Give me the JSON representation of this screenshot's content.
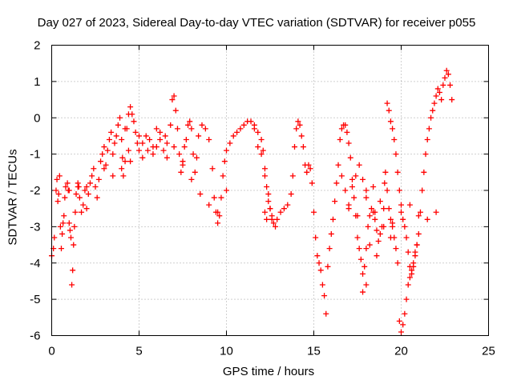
{
  "chart_data": {
    "type": "scatter",
    "title": "Day 027 of 2023, Sidereal Day-to-day VTEC variation (SDTVAR) for receiver p055",
    "xlabel": "GPS time / hours",
    "ylabel": "SDTVAR / TECUs",
    "xlim": [
      0,
      25
    ],
    "ylim": [
      -6,
      2
    ],
    "xticks": [
      0,
      5,
      10,
      15,
      20,
      25
    ],
    "yticks": [
      -6,
      -5,
      -4,
      -3,
      -2,
      -1,
      0,
      1,
      2
    ],
    "grid": true,
    "marker": "+",
    "color": "#ff0000",
    "series": [
      {
        "name": "SDTVAR",
        "points": [
          [
            0.0,
            -3.8
          ],
          [
            0.1,
            -3.6
          ],
          [
            0.15,
            -3.3
          ],
          [
            0.25,
            -2.0
          ],
          [
            0.3,
            -1.7
          ],
          [
            0.35,
            -2.3
          ],
          [
            0.4,
            -2.1
          ],
          [
            0.45,
            -1.6
          ],
          [
            0.5,
            -3.0
          ],
          [
            0.55,
            -3.6
          ],
          [
            0.6,
            -3.2
          ],
          [
            0.65,
            -2.9
          ],
          [
            0.7,
            -2.7
          ],
          [
            0.75,
            -2.2
          ],
          [
            0.8,
            -1.9
          ],
          [
            0.9,
            -1.8
          ],
          [
            0.95,
            -2.0
          ],
          [
            1.0,
            -2.9
          ],
          [
            1.05,
            -3.1
          ],
          [
            1.1,
            -3.3
          ],
          [
            1.15,
            -4.6
          ],
          [
            1.2,
            -4.2
          ],
          [
            1.25,
            -3.5
          ],
          [
            1.3,
            -3.0
          ],
          [
            1.35,
            -2.6
          ],
          [
            1.4,
            -2.1
          ],
          [
            1.5,
            -1.8
          ],
          [
            1.55,
            -1.9
          ],
          [
            1.6,
            -2.2
          ],
          [
            1.7,
            -2.6
          ],
          [
            1.8,
            -2.4
          ],
          [
            1.9,
            -2.0
          ],
          [
            2.0,
            -2.5
          ],
          [
            2.1,
            -2.1
          ],
          [
            2.2,
            -1.8
          ],
          [
            2.3,
            -1.6
          ],
          [
            2.4,
            -1.4
          ],
          [
            2.5,
            -1.9
          ],
          [
            2.6,
            -2.2
          ],
          [
            2.7,
            -1.7
          ],
          [
            2.8,
            -1.2
          ],
          [
            2.9,
            -1.0
          ],
          [
            3.0,
            -0.8
          ],
          [
            3.1,
            -1.3
          ],
          [
            3.2,
            -0.9
          ],
          [
            3.3,
            -0.6
          ],
          [
            3.4,
            -0.4
          ],
          [
            3.5,
            -1.0
          ],
          [
            3.6,
            -0.7
          ],
          [
            3.7,
            -0.5
          ],
          [
            3.8,
            -0.2
          ],
          [
            3.9,
            0.0
          ],
          [
            4.0,
            -0.6
          ],
          [
            4.05,
            -1.1
          ],
          [
            4.1,
            -1.6
          ],
          [
            4.2,
            -1.2
          ],
          [
            4.3,
            -0.3
          ],
          [
            4.4,
            0.1
          ],
          [
            4.5,
            0.3
          ],
          [
            4.6,
            0.1
          ],
          [
            4.7,
            -0.1
          ],
          [
            4.8,
            -0.4
          ],
          [
            4.9,
            -0.7
          ],
          [
            5.0,
            -0.9
          ],
          [
            5.2,
            -0.7
          ],
          [
            5.4,
            -0.5
          ],
          [
            5.6,
            -0.6
          ],
          [
            5.8,
            -0.8
          ],
          [
            6.0,
            -0.3
          ],
          [
            6.2,
            -0.6
          ],
          [
            6.4,
            -0.9
          ],
          [
            6.6,
            -1.1
          ],
          [
            6.8,
            -0.2
          ],
          [
            6.9,
            0.5
          ],
          [
            7.0,
            0.6
          ],
          [
            7.1,
            0.2
          ],
          [
            7.2,
            -0.3
          ],
          [
            7.3,
            -1.0
          ],
          [
            7.4,
            -1.5
          ],
          [
            7.5,
            -1.2
          ],
          [
            7.6,
            -0.8
          ],
          [
            7.7,
            -0.6
          ],
          [
            7.8,
            -0.2
          ],
          [
            7.9,
            -0.1
          ],
          [
            8.0,
            -0.3
          ],
          [
            8.1,
            -1.0
          ],
          [
            8.2,
            -1.5
          ],
          [
            8.3,
            -1.1
          ],
          [
            8.4,
            -0.5
          ],
          [
            8.6,
            -0.2
          ],
          [
            8.8,
            -0.3
          ],
          [
            9.0,
            -0.6
          ],
          [
            9.2,
            -1.4
          ],
          [
            9.3,
            -2.2
          ],
          [
            9.4,
            -2.6
          ],
          [
            9.5,
            -2.9
          ],
          [
            9.6,
            -2.7
          ],
          [
            9.7,
            -2.2
          ],
          [
            9.8,
            -1.6
          ],
          [
            9.9,
            -1.2
          ],
          [
            10.0,
            -0.9
          ],
          [
            10.2,
            -0.7
          ],
          [
            10.4,
            -0.5
          ],
          [
            10.6,
            -0.4
          ],
          [
            10.8,
            -0.3
          ],
          [
            11.0,
            -0.2
          ],
          [
            11.2,
            -0.1
          ],
          [
            11.4,
            -0.1
          ],
          [
            11.6,
            -0.2
          ],
          [
            11.8,
            -0.4
          ],
          [
            12.0,
            -0.6
          ],
          [
            12.1,
            -0.9
          ],
          [
            12.2,
            -1.4
          ],
          [
            12.3,
            -1.9
          ],
          [
            12.4,
            -2.3
          ],
          [
            12.5,
            -2.5
          ],
          [
            12.6,
            -2.7
          ],
          [
            12.7,
            -2.9
          ],
          [
            12.9,
            -2.8
          ],
          [
            13.1,
            -2.6
          ],
          [
            13.3,
            -2.5
          ],
          [
            13.5,
            -2.4
          ],
          [
            13.7,
            -2.1
          ],
          [
            13.8,
            -1.6
          ],
          [
            13.9,
            -0.8
          ],
          [
            14.0,
            -0.3
          ],
          [
            14.1,
            -0.1
          ],
          [
            14.2,
            -0.2
          ],
          [
            14.3,
            -0.5
          ],
          [
            14.4,
            -0.8
          ],
          [
            14.5,
            -1.3
          ],
          [
            14.6,
            -1.5
          ],
          [
            14.7,
            -1.3
          ],
          [
            14.8,
            -1.4
          ],
          [
            14.9,
            -1.8
          ],
          [
            15.0,
            -2.6
          ],
          [
            15.1,
            -3.3
          ],
          [
            15.2,
            -3.8
          ],
          [
            15.3,
            -4.0
          ],
          [
            15.4,
            -4.2
          ],
          [
            15.5,
            -4.6
          ],
          [
            15.6,
            -4.9
          ],
          [
            15.7,
            -5.4
          ],
          [
            15.8,
            -4.1
          ],
          [
            15.9,
            -3.6
          ],
          [
            16.0,
            -3.2
          ],
          [
            16.1,
            -2.8
          ],
          [
            16.2,
            -2.3
          ],
          [
            16.3,
            -1.8
          ],
          [
            16.4,
            -1.3
          ],
          [
            16.5,
            -0.6
          ],
          [
            16.6,
            -0.3
          ],
          [
            16.7,
            -0.2
          ],
          [
            16.8,
            -0.2
          ],
          [
            16.9,
            -0.4
          ],
          [
            17.0,
            -0.7
          ],
          [
            17.1,
            -1.1
          ],
          [
            17.2,
            -1.7
          ],
          [
            17.3,
            -2.2
          ],
          [
            17.4,
            -2.7
          ],
          [
            17.5,
            -3.3
          ],
          [
            17.6,
            -3.6
          ],
          [
            17.7,
            -3.9
          ],
          [
            17.8,
            -4.3
          ],
          [
            17.9,
            -4.1
          ],
          [
            18.0,
            -3.6
          ],
          [
            18.1,
            -3.0
          ],
          [
            18.2,
            -2.7
          ],
          [
            18.3,
            -2.5
          ],
          [
            18.4,
            -2.6
          ],
          [
            18.5,
            -2.8
          ],
          [
            18.6,
            -3.1
          ],
          [
            18.7,
            -3.4
          ],
          [
            18.8,
            -3.2
          ],
          [
            18.9,
            -3.0
          ],
          [
            19.0,
            -2.5
          ],
          [
            19.05,
            -1.8
          ],
          [
            19.1,
            -1.5
          ],
          [
            19.2,
            -2.0
          ],
          [
            19.3,
            -2.5
          ],
          [
            19.4,
            -2.8
          ],
          [
            19.5,
            -3.0
          ],
          [
            19.6,
            -3.3
          ],
          [
            19.7,
            -3.6
          ],
          [
            19.8,
            -4.0
          ],
          [
            19.9,
            -5.6
          ],
          [
            20.0,
            -5.9
          ],
          [
            20.1,
            -5.7
          ],
          [
            20.2,
            -5.4
          ],
          [
            20.3,
            -5.0
          ],
          [
            20.4,
            -4.6
          ],
          [
            20.5,
            -4.4
          ],
          [
            20.6,
            -4.2
          ],
          [
            20.7,
            -4.0
          ],
          [
            20.8,
            -3.8
          ],
          [
            20.9,
            -3.5
          ],
          [
            21.0,
            -3.2
          ],
          [
            21.1,
            -2.6
          ],
          [
            21.2,
            -2.0
          ],
          [
            21.3,
            -1.5
          ],
          [
            21.4,
            -1.0
          ],
          [
            21.5,
            -0.6
          ],
          [
            21.6,
            -0.3
          ],
          [
            21.7,
            0.0
          ],
          [
            21.8,
            0.2
          ],
          [
            21.9,
            0.4
          ],
          [
            22.0,
            0.6
          ],
          [
            22.1,
            0.8
          ],
          [
            22.2,
            0.7
          ],
          [
            22.3,
            0.5
          ],
          [
            22.4,
            0.9
          ],
          [
            22.5,
            1.1
          ],
          [
            22.6,
            1.3
          ],
          [
            22.7,
            1.2
          ],
          [
            22.8,
            0.9
          ],
          [
            22.9,
            0.5
          ],
          [
            1.0,
            -2.0
          ],
          [
            1.5,
            -1.9
          ],
          [
            2.0,
            -1.9
          ],
          [
            3.0,
            -1.4
          ],
          [
            3.5,
            -1.6
          ],
          [
            4.0,
            -1.4
          ],
          [
            4.5,
            -1.2
          ],
          [
            5.0,
            -0.5
          ],
          [
            5.5,
            -0.9
          ],
          [
            6.0,
            -0.8
          ],
          [
            6.5,
            -0.5
          ],
          [
            7.0,
            -0.8
          ],
          [
            7.5,
            -1.3
          ],
          [
            8.0,
            -1.7
          ],
          [
            8.5,
            -2.1
          ],
          [
            9.0,
            -2.4
          ],
          [
            9.5,
            -2.6
          ],
          [
            10.0,
            -2.0
          ],
          [
            4.2,
            -0.3
          ],
          [
            4.4,
            -0.9
          ],
          [
            5.2,
            -1.1
          ],
          [
            5.8,
            -1.0
          ],
          [
            6.2,
            -0.4
          ],
          [
            6.6,
            -0.7
          ],
          [
            17.0,
            -2.5
          ],
          [
            17.5,
            -2.7
          ],
          [
            18.0,
            -2.2
          ],
          [
            18.5,
            -2.6
          ],
          [
            19.0,
            -3.0
          ],
          [
            19.5,
            -2.9
          ],
          [
            20.0,
            -2.6
          ],
          [
            20.5,
            -2.4
          ],
          [
            21.0,
            -2.7
          ],
          [
            21.5,
            -2.8
          ],
          [
            22.0,
            -2.6
          ],
          [
            18.2,
            -3.5
          ],
          [
            18.6,
            -3.8
          ],
          [
            18.0,
            -4.6
          ],
          [
            17.8,
            -4.8
          ],
          [
            19.4,
            -3.3
          ],
          [
            19.2,
            0.4
          ],
          [
            19.3,
            0.2
          ],
          [
            19.4,
            -0.1
          ],
          [
            19.5,
            -0.3
          ],
          [
            19.6,
            -0.6
          ],
          [
            19.7,
            -1.0
          ],
          [
            19.8,
            -1.5
          ],
          [
            19.9,
            -2.0
          ],
          [
            20.0,
            -2.4
          ],
          [
            20.1,
            -2.8
          ],
          [
            20.2,
            -3.0
          ],
          [
            20.3,
            -3.3
          ],
          [
            20.4,
            -3.7
          ],
          [
            20.5,
            -4.1
          ],
          [
            20.6,
            -4.3
          ],
          [
            20.7,
            -4.1
          ],
          [
            20.8,
            -3.7
          ],
          [
            20.9,
            -3.5
          ],
          [
            16.6,
            -1.6
          ],
          [
            16.8,
            -2.0
          ],
          [
            17.0,
            -2.4
          ],
          [
            17.2,
            -1.9
          ],
          [
            17.4,
            -1.6
          ],
          [
            17.6,
            -1.3
          ],
          [
            17.8,
            -1.7
          ],
          [
            18.0,
            -2.0
          ],
          [
            18.4,
            -1.9
          ],
          [
            18.8,
            -2.3
          ],
          [
            11.6,
            -0.3
          ],
          [
            11.8,
            -0.8
          ],
          [
            12.0,
            -1.0
          ],
          [
            12.2,
            -1.6
          ],
          [
            12.4,
            -2.1
          ],
          [
            12.5,
            -2.5
          ],
          [
            12.6,
            -2.8
          ],
          [
            12.8,
            -3.0
          ],
          [
            12.2,
            -2.6
          ],
          [
            12.3,
            -2.8
          ]
        ]
      }
    ]
  }
}
